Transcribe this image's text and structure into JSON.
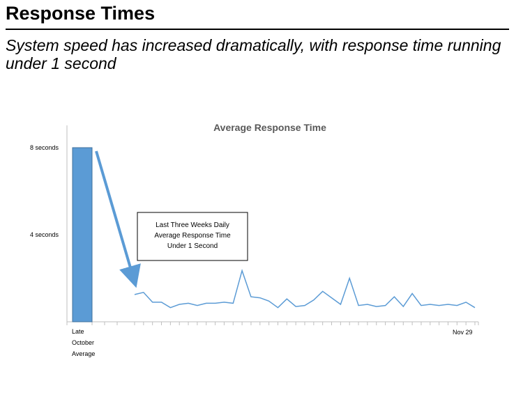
{
  "slide": {
    "title": "Response Times",
    "subtitle": "System speed has increased dramatically, with  response time running under 1 second"
  },
  "chart_data": {
    "type": "bar",
    "title": "Average Response Time",
    "xlabel": "",
    "ylabel": "",
    "ylim": [
      0,
      8
    ],
    "y_tick_labels": [
      {
        "value": 8,
        "label": "8 seconds"
      },
      {
        "value": 4,
        "label": "4 seconds"
      }
    ],
    "x_tick_labels": {
      "first": [
        "Late",
        "October",
        "Average"
      ],
      "last": [
        "Nov 29"
      ]
    },
    "grid": false,
    "legend": "none",
    "bar": {
      "name": "Late October Average",
      "value": 8,
      "color": "#5b9bd5"
    },
    "line": {
      "color": "#5b9bd5",
      "values": [
        1.25,
        1.35,
        0.9,
        0.9,
        0.65,
        0.8,
        0.85,
        0.75,
        0.85,
        0.85,
        0.9,
        0.85,
        2.35,
        1.15,
        1.1,
        0.95,
        0.65,
        1.05,
        0.7,
        0.75,
        1.0,
        1.4,
        1.1,
        0.8,
        2.0,
        0.75,
        0.8,
        0.7,
        0.75,
        1.15,
        0.7,
        1.3,
        0.75,
        0.8,
        0.75,
        0.8,
        0.75,
        0.9,
        0.65
      ]
    },
    "annotation": "Last Three Weeks Daily Average Response Time Under 1 Second",
    "annotation_lines": [
      "Last Three  Weeks  Daily",
      "Average  Response  Time",
      "Under  1  Second"
    ]
  }
}
